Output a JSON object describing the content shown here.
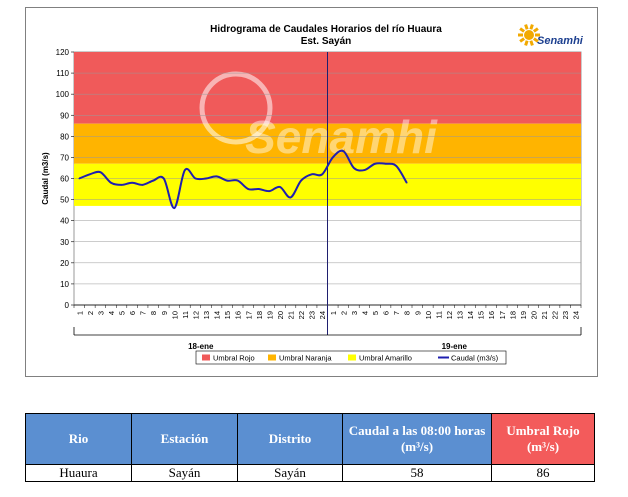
{
  "chart_data": {
    "type": "line",
    "title": "Hidrograma de Caudales Horarios del río Huaura",
    "subtitle": "Est. Sayán",
    "ylabel": "Caudal  (m3/s)",
    "ylim": [
      0,
      120
    ],
    "yticks": [
      0,
      10,
      20,
      30,
      40,
      50,
      60,
      70,
      80,
      90,
      100,
      110,
      120
    ],
    "x_hours": [
      "1",
      "2",
      "3",
      "4",
      "5",
      "6",
      "7",
      "8",
      "9",
      "10",
      "11",
      "12",
      "13",
      "14",
      "15",
      "16",
      "17",
      "18",
      "19",
      "20",
      "21",
      "22",
      "23",
      "24",
      "1",
      "2",
      "3",
      "4",
      "5",
      "6",
      "7",
      "8",
      "9",
      "10",
      "11",
      "12",
      "13",
      "14",
      "15",
      "16",
      "17",
      "18",
      "19",
      "20",
      "21",
      "22",
      "23",
      "24"
    ],
    "day_labels": [
      "18-ene",
      "19-ene"
    ],
    "thresholds": [
      {
        "name": "Umbral Rojo",
        "from": 86,
        "to": 120,
        "color": "#f05a5a"
      },
      {
        "name": "Umbral Naranja",
        "from": 67,
        "to": 86,
        "color": "#ffb400"
      },
      {
        "name": "Umbral Amarillo",
        "from": 47,
        "to": 67,
        "color": "#ffff00"
      }
    ],
    "series": [
      {
        "name": "Caudal (m3/s)",
        "color": "#1f1fb0",
        "values": [
          60,
          62,
          63,
          58,
          57,
          58,
          57,
          59,
          60,
          46,
          64,
          60,
          60,
          61,
          59,
          59,
          55,
          55,
          54,
          56,
          51,
          59,
          62,
          62,
          70,
          73,
          65,
          64,
          67,
          67,
          66,
          58
        ]
      }
    ],
    "grid": true,
    "legend_position": "bottom"
  },
  "branding": {
    "logo_text": "Senamhi",
    "watermark": "Senamhi"
  },
  "table": {
    "headers": [
      "Rio",
      "Estación",
      "Distrito",
      "Caudal a las 08:00 horas (m³/s)",
      "Umbral Rojo (m³/s)"
    ],
    "row": [
      "Huaura",
      "Sayán",
      "Sayán",
      "58",
      "86"
    ]
  }
}
